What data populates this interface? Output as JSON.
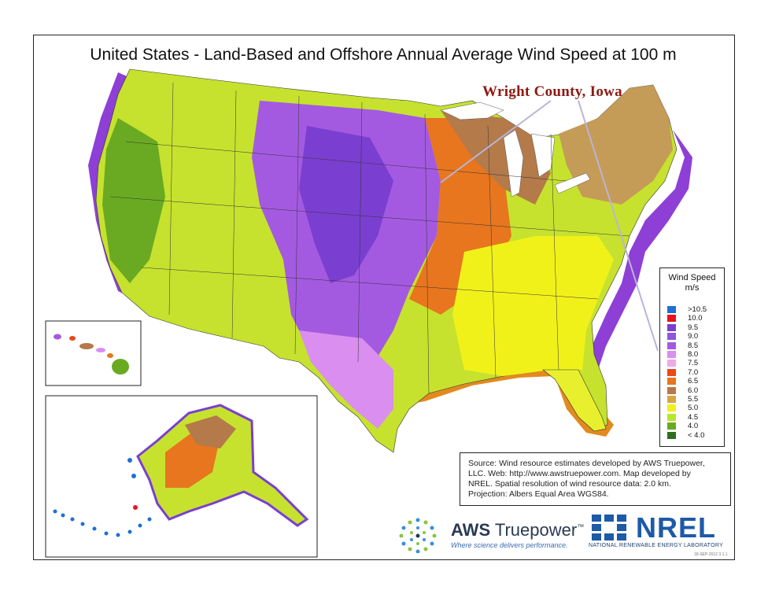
{
  "title": "United States - Land-Based and Offshore Annual Average Wind Speed at 100 m",
  "callout": "Wright County, Iowa",
  "legend": {
    "title_line1": "Wind Speed",
    "title_line2": "m/s",
    "items": [
      {
        "label": ">10.5",
        "color": "#1e6fd6"
      },
      {
        "label": "10.0",
        "color": "#e8121e"
      },
      {
        "label": "9.5",
        "color": "#7a3fd0"
      },
      {
        "label": "9.0",
        "color": "#8e55dd"
      },
      {
        "label": "8.5",
        "color": "#a35ae0"
      },
      {
        "label": "8.0",
        "color": "#d98ef0"
      },
      {
        "label": "7.5",
        "color": "#f0a8e8"
      },
      {
        "label": "7.0",
        "color": "#e8481a"
      },
      {
        "label": "6.5",
        "color": "#e8761e"
      },
      {
        "label": "6.0",
        "color": "#b47a4a"
      },
      {
        "label": "5.5",
        "color": "#d6a642"
      },
      {
        "label": "5.0",
        "color": "#f1f11a"
      },
      {
        "label": "4.5",
        "color": "#b8e62a"
      },
      {
        "label": "4.0",
        "color": "#6aaa22"
      },
      {
        "label": "< 4.0",
        "color": "#2e6e1e"
      }
    ]
  },
  "source": {
    "line1": "Source: Wind resource estimates developed by AWS Truepower,",
    "line2": "LLC.  Web: http://www.awstruepower.com. Map developed by",
    "line3": "NREL.  Spatial resolution of wind resource data: 2.0 km.",
    "line4": "Projection: Albers Equal Area WGS84."
  },
  "logos": {
    "aws_bold": "AWS",
    "aws_rest": "Truepower",
    "aws_tm": "™",
    "aws_tagline": "Where science delivers performance.",
    "nrel": "NREL",
    "nrel_full": "NATIONAL RENEWABLE ENERGY LABORATORY"
  },
  "stamp": "18-SEP-2012 3.1.1"
}
